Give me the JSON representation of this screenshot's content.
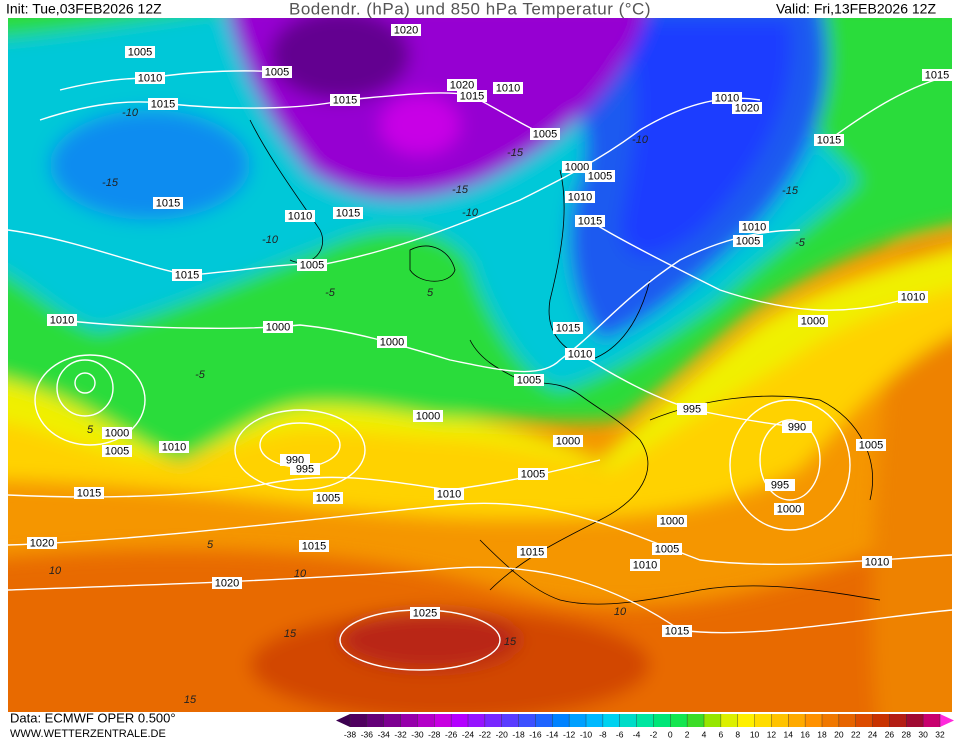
{
  "header": {
    "init": "Init: Tue,03FEB2026 12Z",
    "title": "Bodendr. (hPa) und 850 hPa Temperatur (°C)",
    "valid": "Valid: Fri,13FEB2026 12Z"
  },
  "footer": {
    "data_source": "Data: ECMWF OPER 0.500°",
    "website": "WWW.WETTERZENTRALE.DE"
  },
  "isobar_labels": [
    "1005",
    "1010",
    "1015",
    "1020",
    "1005",
    "1015",
    "1020",
    "1015",
    "1010",
    "1005",
    "1000",
    "1005",
    "1010",
    "1015",
    "1015",
    "1010",
    "1015",
    "1005",
    "1015",
    "1010",
    "1000",
    "1000",
    "1015",
    "1010",
    "1005",
    "1000",
    "1000",
    "1005",
    "1010",
    "990",
    "995",
    "1005",
    "1015",
    "1010",
    "1000",
    "1005",
    "1015",
    "1020",
    "1020",
    "1015",
    "1000",
    "1005",
    "1010",
    "1015",
    "1025",
    "1010",
    "995",
    "990",
    "1005",
    "995",
    "1000",
    "1010",
    "1000",
    "1005",
    "1010",
    "1015",
    "1015",
    "1020",
    "1010"
  ],
  "isotherm_labels": [
    "-10",
    "-15",
    "-15",
    "-10",
    "-5",
    "-10",
    "-15",
    "-10",
    "-15",
    "5",
    "-5",
    "5",
    "10",
    "10",
    "15",
    "15",
    "15",
    "10",
    "5",
    "-5"
  ],
  "colorbar": {
    "ticks": [
      -38,
      -36,
      -34,
      -32,
      -30,
      -28,
      -26,
      -24,
      -22,
      -20,
      -18,
      -16,
      -14,
      -12,
      -10,
      -8,
      -6,
      -4,
      -2,
      0,
      2,
      4,
      6,
      8,
      10,
      12,
      14,
      16,
      18,
      20,
      22,
      24,
      26,
      28,
      30,
      32
    ],
    "colors": [
      "#3c0050",
      "#50005f",
      "#640078",
      "#7d0091",
      "#9600aa",
      "#b400c8",
      "#c800e1",
      "#b400ff",
      "#9614ff",
      "#7828ff",
      "#5a3cff",
      "#3c50ff",
      "#1e64ff",
      "#0082ff",
      "#00a0ff",
      "#00b9ff",
      "#00d2f0",
      "#00dcc8",
      "#00e6a0",
      "#00e678",
      "#14e650",
      "#3cdc28",
      "#96e600",
      "#dcf000",
      "#fff000",
      "#ffdc00",
      "#ffc300",
      "#ffaa00",
      "#ff9100",
      "#f07800",
      "#e66400",
      "#dc4b00",
      "#c83200",
      "#b41e14",
      "#a00a32",
      "#c8006e",
      "#ff28dc"
    ]
  }
}
